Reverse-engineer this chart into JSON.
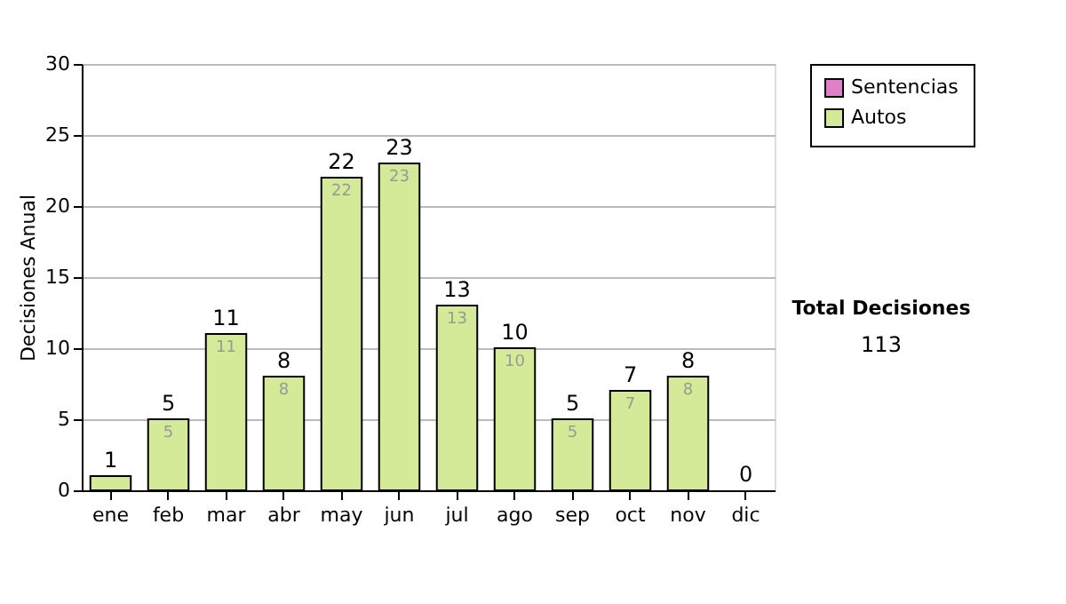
{
  "chart_data": {
    "type": "bar",
    "stacked": true,
    "ylabel": "Decisiones Anual",
    "categories": [
      "ene",
      "feb",
      "mar",
      "abr",
      "may",
      "jun",
      "jul",
      "ago",
      "sep",
      "oct",
      "nov",
      "dic"
    ],
    "series": [
      {
        "name": "Autos",
        "color": "#d4ea98",
        "values": [
          1,
          5,
          11,
          8,
          22,
          23,
          13,
          10,
          5,
          7,
          8,
          0
        ],
        "value_labels": [
          null,
          "5",
          "11",
          "8",
          "22",
          "23",
          "13",
          "10",
          "5",
          "7",
          "8",
          null
        ]
      },
      {
        "name": "Sentencias",
        "color": "#e080c8",
        "values": [
          0,
          0,
          0,
          0,
          0,
          0,
          0,
          0,
          0,
          0,
          0,
          0
        ]
      }
    ],
    "totals": [
      "1",
      "5",
      "11",
      "8",
      "22",
      "23",
      "13",
      "10",
      "5",
      "7",
      "8",
      "0"
    ],
    "ylim": [
      0,
      30
    ],
    "yticks": [
      0,
      5,
      10,
      15,
      20,
      25,
      30
    ],
    "grid": "y",
    "legend": "right",
    "annotations": [
      "Total Decisiones",
      "113"
    ]
  }
}
